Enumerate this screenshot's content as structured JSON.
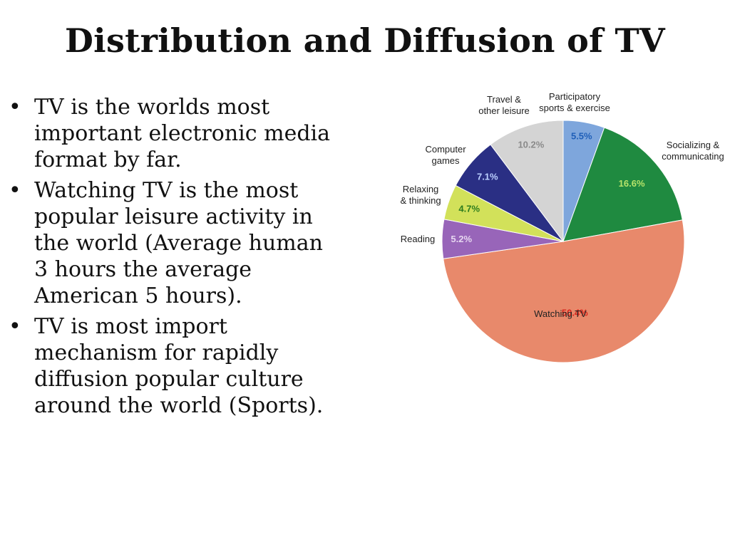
{
  "slide": {
    "title": "Distribution and Diffusion of TV",
    "bullets": [
      {
        "lines": [
          "TV is the worlds most",
          "important electronic media",
          "format by far."
        ]
      },
      {
        "lines": [
          "Watching TV is the most",
          "popular leisure activity in",
          "the world (Average human",
          "3 hours the average",
          "American 5 hours)."
        ]
      },
      {
        "lines": [
          "TV is most import",
          "mechanism for rapidly",
          "diffusion popular culture",
          "around the world (Sports)."
        ]
      }
    ]
  },
  "chart_data": {
    "type": "pie",
    "title": "",
    "start": "12 o'clock",
    "direction": "clockwise",
    "slices": [
      {
        "label": [
          "Participatory",
          "sports & exercise"
        ],
        "value": 5.5,
        "value_label": "5.5%",
        "color": "#7ea6dc",
        "value_color": "#1f5fb8"
      },
      {
        "label": [
          "Socializing &",
          "communicating"
        ],
        "value": 16.6,
        "value_label": "16.6%",
        "color": "#1f8a40",
        "value_color": "#b6e36a"
      },
      {
        "label": [
          "Watching TV"
        ],
        "value": 50.4,
        "value_label": "50.4%",
        "color": "#e8896b",
        "value_color": "#d8261d"
      },
      {
        "label": [
          "Reading"
        ],
        "value": 5.2,
        "value_label": "5.2%",
        "color": "#9865b9",
        "value_color": "#e6d6f0"
      },
      {
        "label": [
          "Relaxing",
          "& thinking"
        ],
        "value": 4.7,
        "value_label": "4.7%",
        "color": "#d2e15a",
        "value_color": "#2e7d1e"
      },
      {
        "label": [
          "Computer",
          "games"
        ],
        "value": 7.1,
        "value_label": "7.1%",
        "color": "#2a2f84",
        "value_color": "#bcd0ff"
      },
      {
        "label": [
          "Travel &",
          "other leisure"
        ],
        "value": 10.2,
        "value_label": "10.2%",
        "color": "#d4d4d4",
        "value_color": "#8a8a8a"
      }
    ]
  }
}
